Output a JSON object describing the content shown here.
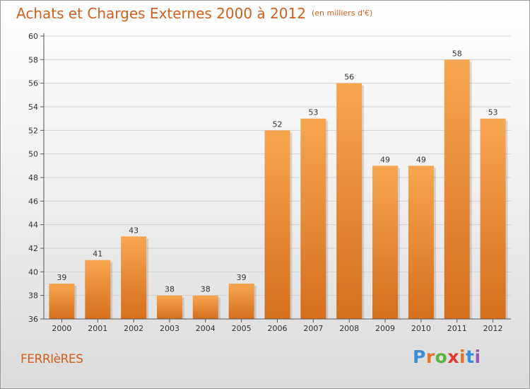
{
  "header": {
    "title": "Achats et Charges Externes 2000 à 2012",
    "unit": "(en milliers d'€)"
  },
  "footer": {
    "commune": "FERRIèRES",
    "logo_letters": [
      "P",
      "r",
      "o",
      "x",
      "i",
      "t",
      "i"
    ],
    "logo_colors": [
      "#3a8fd6",
      "#e4752b",
      "#5bb341",
      "#e23b31",
      "#e4752b",
      "#3a8fd6",
      "#9b59b6"
    ]
  },
  "colors": {
    "accent": "#d0601c",
    "bar_top": "#f7a650",
    "bar_bottom": "#d66f1c",
    "axis": "#555555"
  },
  "chart_data": {
    "type": "bar",
    "categories": [
      "2000",
      "2001",
      "2002",
      "2003",
      "2004",
      "2005",
      "2006",
      "2007",
      "2008",
      "2009",
      "2010",
      "2011",
      "2012"
    ],
    "values": [
      39,
      41,
      43,
      38,
      38,
      39,
      52,
      53,
      56,
      49,
      49,
      58,
      53
    ],
    "ylim": [
      36,
      60
    ],
    "yticks": [
      36,
      38,
      40,
      42,
      44,
      46,
      48,
      50,
      52,
      54,
      56,
      58,
      60
    ],
    "grid": "horizontal"
  }
}
